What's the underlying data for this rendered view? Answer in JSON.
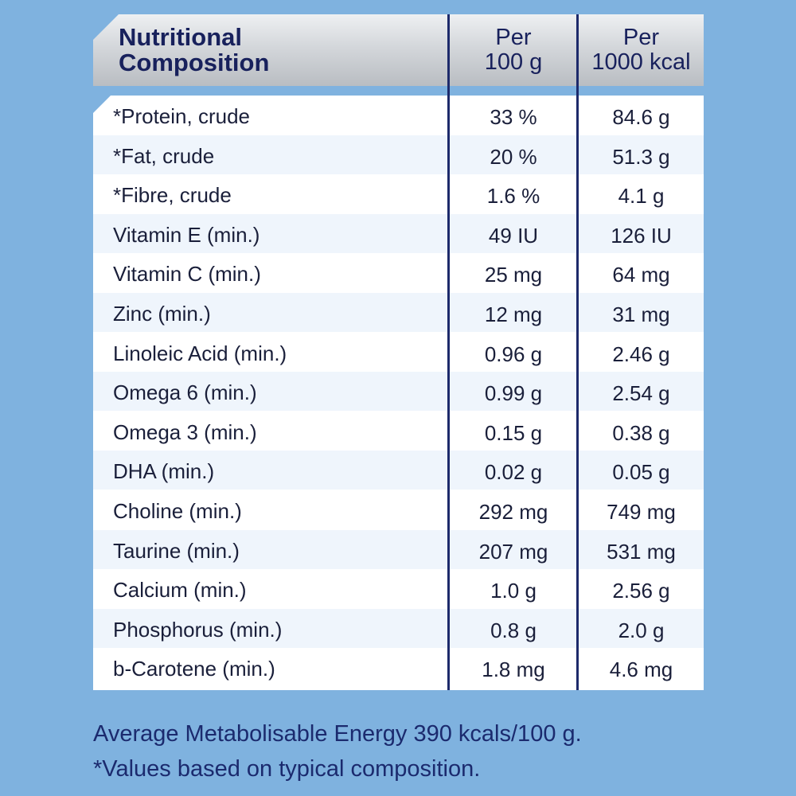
{
  "header": {
    "title_line1": "Nutritional",
    "title_line2": "Composition",
    "col1_line1": "Per",
    "col1_line2": "100 g",
    "col2_line1": "Per",
    "col2_line2": "1000 kcal"
  },
  "rows": [
    {
      "name": "*Protein, crude",
      "per100g": "33 %",
      "per1000kcal": "84.6 g"
    },
    {
      "name": "*Fat, crude",
      "per100g": "20 %",
      "per1000kcal": "51.3 g"
    },
    {
      "name": "*Fibre, crude",
      "per100g": "1.6 %",
      "per1000kcal": "4.1 g"
    },
    {
      "name": "Vitamin E (min.)",
      "per100g": "49 IU",
      "per1000kcal": "126 IU"
    },
    {
      "name": "Vitamin C (min.)",
      "per100g": "25 mg",
      "per1000kcal": "64 mg"
    },
    {
      "name": "Zinc (min.)",
      "per100g": "12 mg",
      "per1000kcal": "31 mg"
    },
    {
      "name": "Linoleic Acid (min.)",
      "per100g": "0.96 g",
      "per1000kcal": "2.46 g"
    },
    {
      "name": "Omega 6 (min.)",
      "per100g": "0.99 g",
      "per1000kcal": "2.54 g"
    },
    {
      "name": "Omega 3 (min.)",
      "per100g": "0.15 g",
      "per1000kcal": "0.38 g"
    },
    {
      "name": "DHA (min.)",
      "per100g": "0.02 g",
      "per1000kcal": "0.05 g"
    },
    {
      "name": "Choline (min.)",
      "per100g": "292 mg",
      "per1000kcal": "749 mg"
    },
    {
      "name": "Taurine (min.)",
      "per100g": "207 mg",
      "per1000kcal": "531 mg"
    },
    {
      "name": "Calcium (min.)",
      "per100g": "1.0 g",
      "per1000kcal": "2.56 g"
    },
    {
      "name": "Phosphorus (min.)",
      "per100g": "0.8 g",
      "per1000kcal": "2.0 g"
    },
    {
      "name": "b-Carotene (min.)",
      "per100g": "1.8 mg",
      "per1000kcal": "4.6 mg"
    }
  ],
  "footer": {
    "line1": "Average Metabolisable Energy 390 kcals/100 g.",
    "line2": "*Values based on typical composition."
  },
  "colors": {
    "background": "#7fb2df",
    "text_dark_blue": "#18215c",
    "divider": "#1d2a6b",
    "row_alt": "#eff5fc"
  }
}
